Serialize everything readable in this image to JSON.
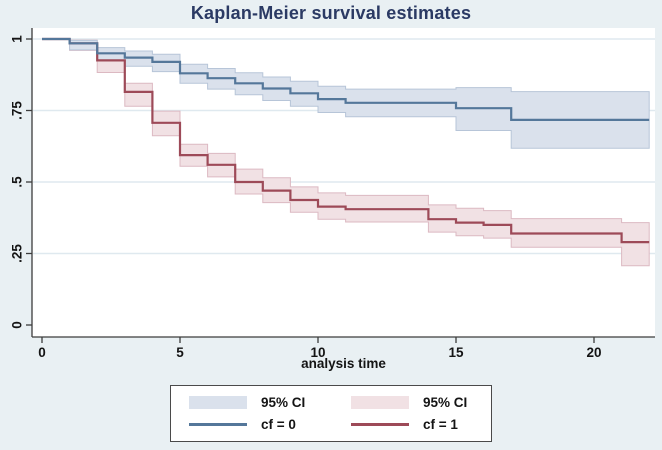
{
  "title": "Kaplan-Meier survival estimates",
  "legend": {
    "columns": [
      {
        "ci_label": "95% CI",
        "line_label": "cf = 0"
      },
      {
        "ci_label": "95% CI",
        "line_label": "cf = 1"
      }
    ]
  },
  "colors": {
    "background": "#e9f0f3",
    "plot_bg": "#ffffff",
    "grid": "#dfe9ef",
    "axis": "#3c3c3c",
    "title": "#2b3a64",
    "tick_text": "#141414",
    "legend_border": "#4a4a4a",
    "legend_bg": "#ffffff",
    "cf0_line": "#54779a",
    "cf0_ci_fill": "#dae1ec",
    "cf0_ci_edge": "#b7c5d8",
    "cf1_line": "#9d4a58",
    "cf1_ci_fill": "#f1e1e4",
    "cf1_ci_edge": "#dcb9c2"
  },
  "chart_data": {
    "type": "line",
    "subtype": "kaplan_meier_step",
    "title": "Kaplan-Meier survival estimates",
    "xlabel": "analysis time",
    "ylabel": "",
    "grid": true,
    "legend_position": "bottom",
    "x_ticks": [
      0,
      5,
      10,
      15,
      20
    ],
    "x_max": 22,
    "y_ticks": [
      {
        "value": 0,
        "label": "0"
      },
      {
        "value": 0.25,
        "label": ".25"
      },
      {
        "value": 0.5,
        "label": ".5"
      },
      {
        "value": 0.75,
        "label": ".75"
      },
      {
        "value": 1,
        "label": "1"
      }
    ],
    "ylim": [
      0,
      1
    ],
    "series": [
      {
        "name": "cf = 0",
        "ci_name": "95% CI",
        "steps": [
          [
            0,
            1
          ],
          [
            1,
            0.985
          ],
          [
            2,
            0.95
          ],
          [
            3,
            0.935
          ],
          [
            4,
            0.92
          ],
          [
            5,
            0.88
          ],
          [
            6,
            0.863
          ],
          [
            7,
            0.845
          ],
          [
            8,
            0.827
          ],
          [
            9,
            0.81
          ],
          [
            10,
            0.79
          ],
          [
            11,
            0.777
          ],
          [
            15,
            0.758
          ],
          [
            17,
            0.717
          ]
        ],
        "ci": [
          [
            1,
            0.962,
            0.995
          ],
          [
            2,
            0.923,
            0.97
          ],
          [
            3,
            0.905,
            0.958
          ],
          [
            4,
            0.886,
            0.947
          ],
          [
            5,
            0.845,
            0.912
          ],
          [
            6,
            0.825,
            0.897
          ],
          [
            7,
            0.805,
            0.882
          ],
          [
            8,
            0.785,
            0.867
          ],
          [
            9,
            0.765,
            0.852
          ],
          [
            10,
            0.743,
            0.835
          ],
          [
            11,
            0.728,
            0.825
          ],
          [
            15,
            0.68,
            0.83
          ],
          [
            17,
            0.618,
            0.816
          ]
        ]
      },
      {
        "name": "cf = 1",
        "ci_name": "95% CI",
        "steps": [
          [
            0,
            1
          ],
          [
            1,
            0.985
          ],
          [
            2,
            0.925
          ],
          [
            3,
            0.815
          ],
          [
            4,
            0.707
          ],
          [
            5,
            0.594
          ],
          [
            6,
            0.56
          ],
          [
            7,
            0.5
          ],
          [
            8,
            0.47
          ],
          [
            9,
            0.437
          ],
          [
            10,
            0.414
          ],
          [
            11,
            0.405
          ],
          [
            14,
            0.37
          ],
          [
            15,
            0.358
          ],
          [
            16,
            0.35
          ],
          [
            17,
            0.32
          ],
          [
            21,
            0.29
          ]
        ],
        "ci": [
          [
            1,
            0.96,
            0.996
          ],
          [
            2,
            0.883,
            0.956
          ],
          [
            3,
            0.765,
            0.845
          ],
          [
            4,
            0.662,
            0.748
          ],
          [
            5,
            0.555,
            0.632
          ],
          [
            6,
            0.518,
            0.6
          ],
          [
            7,
            0.458,
            0.545
          ],
          [
            8,
            0.428,
            0.515
          ],
          [
            9,
            0.394,
            0.483
          ],
          [
            10,
            0.37,
            0.462
          ],
          [
            11,
            0.36,
            0.453
          ],
          [
            14,
            0.325,
            0.42
          ],
          [
            15,
            0.312,
            0.408
          ],
          [
            16,
            0.304,
            0.4
          ],
          [
            17,
            0.272,
            0.372
          ],
          [
            21,
            0.207,
            0.358
          ]
        ]
      }
    ]
  }
}
